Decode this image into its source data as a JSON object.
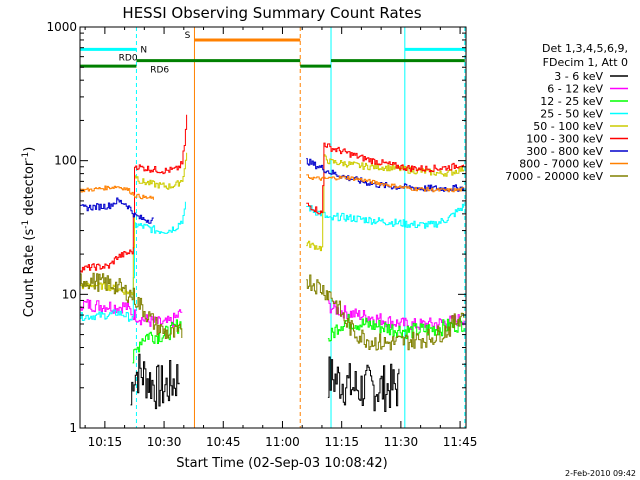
{
  "chart_data": {
    "type": "line",
    "title": "HESSI Observing Summary Count Rates",
    "xlabel": "Start Time (02-Sep-03 10:08:42)",
    "ylabel_main": "Count Rate (s",
    "ylabel_sup1": "-1",
    "ylabel_mid": " detector",
    "ylabel_sup2": "-1",
    "ylabel_end": ")",
    "yscale": "log",
    "ylim": [
      1,
      1000
    ],
    "xlim_min": [
      8.7,
      106.5
    ],
    "xticks": [
      {
        "min": 15,
        "label": "10:15"
      },
      {
        "min": 30,
        "label": "10:30"
      },
      {
        "min": 45,
        "label": "10:45"
      },
      {
        "min": 60,
        "label": "11:00"
      },
      {
        "min": 75,
        "label": "11:15"
      },
      {
        "min": 90,
        "label": "11:30"
      },
      {
        "min": 105,
        "label": "11:45"
      }
    ],
    "yticks": [
      {
        "value": 1,
        "label": "1"
      },
      {
        "value": 10,
        "label": "10"
      },
      {
        "value": 100,
        "label": "100"
      },
      {
        "value": 1000,
        "label": "1000"
      }
    ],
    "legend_header": [
      "Det 1,3,4,5,6,9,",
      "FDecim 1, Att 0"
    ],
    "legend_position": "right",
    "series": [
      {
        "name": "3 - 6 keV",
        "color": "#000000",
        "noise": 0.18,
        "segments": [
          [
            [
              21.5,
              1.5
            ],
            [
              22,
              2.6
            ],
            [
              24,
              2.6
            ],
            [
              26,
              2.3
            ],
            [
              28,
              2.0
            ],
            [
              30,
              2.0
            ],
            [
              32,
              2.2
            ],
            [
              34,
              2.5
            ]
          ],
          [
            [
              71.5,
              2.4
            ],
            [
              74,
              2.3
            ],
            [
              78,
              2.0
            ],
            [
              82,
              2.0
            ],
            [
              86,
              2.0
            ],
            [
              89.5,
              2.0
            ]
          ]
        ]
      },
      {
        "name": "6 - 12 keV",
        "color": "#ff00ff",
        "noise": 0.05,
        "segments": [
          [
            [
              8.7,
              8.5
            ],
            [
              12,
              8.3
            ],
            [
              16,
              8.2
            ],
            [
              18,
              8.0
            ],
            [
              20,
              8.2
            ],
            [
              22.5,
              7.0
            ],
            [
              24,
              6.6
            ],
            [
              27,
              6.2
            ],
            [
              30,
              6.0
            ],
            [
              32,
              6.3
            ],
            [
              34.5,
              7.5
            ]
          ],
          [
            [
              71.5,
              8.2
            ],
            [
              74,
              7.6
            ],
            [
              78,
              7.1
            ],
            [
              82,
              6.8
            ],
            [
              86,
              6.4
            ],
            [
              90,
              6.0
            ],
            [
              94,
              5.9
            ],
            [
              98,
              6.0
            ],
            [
              102,
              6.2
            ],
            [
              106,
              6.6
            ]
          ]
        ]
      },
      {
        "name": "12 - 25 keV",
        "color": "#00ff00",
        "noise": 0.06,
        "segments": [
          [
            [
              22,
              3.2
            ],
            [
              24,
              4.6
            ],
            [
              26,
              5.0
            ],
            [
              28,
              4.9
            ],
            [
              30,
              5.0
            ],
            [
              32,
              5.4
            ],
            [
              34.5,
              6.2
            ]
          ],
          [
            [
              71.5,
              4.5
            ],
            [
              74,
              5.8
            ],
            [
              76,
              6.3
            ],
            [
              80,
              6.0
            ],
            [
              84,
              5.8
            ],
            [
              88,
              5.5
            ],
            [
              92,
              5.3
            ],
            [
              96,
              5.4
            ],
            [
              100,
              5.6
            ],
            [
              106,
              6.1
            ]
          ]
        ]
      },
      {
        "name": "25 - 50 keV",
        "color": "#00ffff",
        "noise": 0.03,
        "segments": [
          [
            [
              8.7,
              6.8
            ],
            [
              12,
              6.9
            ],
            [
              16,
              7.0
            ],
            [
              18,
              7.3
            ],
            [
              20,
              7.0
            ],
            [
              22,
              6.5
            ],
            [
              22.5,
              33
            ],
            [
              25,
              32
            ],
            [
              28,
              30
            ],
            [
              31,
              30
            ],
            [
              33,
              32
            ],
            [
              34.5,
              36
            ],
            [
              35,
              40
            ],
            [
              35.5,
              48
            ]
          ],
          [
            [
              66,
              46
            ],
            [
              68,
              42
            ],
            [
              70,
              40
            ],
            [
              72,
              36
            ],
            [
              74,
              38
            ],
            [
              78,
              37
            ],
            [
              82,
              36
            ],
            [
              86,
              35
            ],
            [
              90,
              34
            ],
            [
              94,
              33
            ],
            [
              98,
              33
            ],
            [
              102,
              37
            ],
            [
              106,
              46
            ]
          ]
        ]
      },
      {
        "name": "50 - 100 keV",
        "color": "#cccc00",
        "noise": 0.025,
        "segments": [
          [
            [
              8.7,
              11.5
            ],
            [
              12,
              11.8
            ],
            [
              16,
              11.3
            ],
            [
              18,
              11.0
            ],
            [
              20,
              10.5
            ],
            [
              22,
              10.2
            ],
            [
              22.5,
              78
            ],
            [
              24,
              70
            ],
            [
              28,
              66
            ],
            [
              31,
              64
            ],
            [
              33,
              66
            ],
            [
              34.5,
              72
            ],
            [
              35.2,
              90
            ],
            [
              35.8,
              120
            ]
          ],
          [
            [
              66,
              24
            ],
            [
              68,
              23
            ],
            [
              70,
              22
            ],
            [
              70.5,
              105
            ],
            [
              72,
              98
            ],
            [
              76,
              95
            ],
            [
              80,
              91
            ],
            [
              84,
              90
            ],
            [
              88,
              88
            ],
            [
              92,
              85
            ],
            [
              96,
              83
            ],
            [
              100,
              80
            ],
            [
              103,
              82
            ],
            [
              106,
              88
            ]
          ]
        ]
      },
      {
        "name": "100 - 300 keV",
        "color": "#ff0000",
        "noise": 0.025,
        "segments": [
          [
            [
              8.7,
              15.5
            ],
            [
              12,
              16
            ],
            [
              16,
              16.2
            ],
            [
              18,
              19
            ],
            [
              20,
              20
            ],
            [
              22,
              21
            ],
            [
              22.5,
              92
            ],
            [
              24,
              89
            ],
            [
              27,
              86
            ],
            [
              30,
              84
            ],
            [
              33,
              86
            ],
            [
              34.5,
              95
            ],
            [
              35.2,
              140
            ],
            [
              35.8,
              240
            ]
          ],
          [
            [
              66,
              47
            ],
            [
              68,
              44
            ],
            [
              70,
              40
            ],
            [
              70.5,
              135
            ],
            [
              72,
              125
            ],
            [
              76,
              115
            ],
            [
              80,
              105
            ],
            [
              84,
              98
            ],
            [
              88,
              92
            ],
            [
              92,
              88
            ],
            [
              96,
              87
            ],
            [
              100,
              88
            ],
            [
              103,
              90
            ],
            [
              106,
              96
            ]
          ]
        ]
      },
      {
        "name": "300 - 800 keV",
        "color": "#0000cc",
        "noise": 0.025,
        "segments": [
          [
            [
              8.7,
              44
            ],
            [
              12,
              45
            ],
            [
              16,
              46
            ],
            [
              18,
              50
            ],
            [
              20,
              48
            ],
            [
              21,
              45
            ],
            [
              22.5,
              39
            ],
            [
              24,
              37
            ],
            [
              26,
              36
            ],
            [
              27.5,
              36
            ]
          ],
          [
            [
              66,
              100
            ],
            [
              68,
              93
            ],
            [
              70,
              88
            ],
            [
              72,
              82
            ],
            [
              76,
              75
            ],
            [
              80,
              70
            ],
            [
              84,
              66
            ],
            [
              88,
              64
            ],
            [
              92,
              63
            ],
            [
              96,
              62
            ],
            [
              100,
              62
            ],
            [
              103,
              62
            ],
            [
              106,
              63
            ]
          ]
        ]
      },
      {
        "name": "800 - 7000 keV",
        "color": "#ff8000",
        "noise": 0.015,
        "segments": [
          [
            [
              8.7,
              60
            ],
            [
              12,
              61
            ],
            [
              16,
              63
            ],
            [
              18,
              64
            ],
            [
              20,
              62
            ],
            [
              21,
              60
            ],
            [
              22.5,
              55
            ],
            [
              25,
              53
            ],
            [
              27.5,
              52
            ]
          ],
          [
            [
              66,
              76
            ],
            [
              68,
              74
            ],
            [
              70,
              73
            ],
            [
              72,
              74
            ],
            [
              76,
              75
            ],
            [
              80,
              72
            ],
            [
              84,
              68
            ],
            [
              88,
              65
            ],
            [
              92,
              62
            ],
            [
              96,
              61
            ],
            [
              100,
              60
            ],
            [
              103,
              60
            ],
            [
              106,
              61
            ]
          ]
        ]
      },
      {
        "name": "7000 - 20000 keV",
        "color": "#808000",
        "noise": 0.07,
        "segments": [
          [
            [
              8.7,
              13
            ],
            [
              12,
              12.5
            ],
            [
              16,
              12
            ],
            [
              18,
              11.5
            ],
            [
              20,
              10.5
            ],
            [
              22,
              9.8
            ],
            [
              24,
              8.2
            ],
            [
              26,
              6.8
            ],
            [
              28,
              5.8
            ],
            [
              30,
              5.2
            ],
            [
              32,
              5.0
            ],
            [
              34.5,
              5.2
            ]
          ],
          [
            [
              66,
              13
            ],
            [
              68,
              12
            ],
            [
              70,
              11
            ],
            [
              72,
              10
            ],
            [
              74,
              8
            ],
            [
              76,
              6.2
            ],
            [
              78,
              5.2
            ],
            [
              82,
              4.5
            ],
            [
              86,
              4.3
            ],
            [
              90,
              4.4
            ],
            [
              94,
              4.6
            ],
            [
              98,
              4.8
            ],
            [
              102,
              5.5
            ],
            [
              106,
              7.5
            ]
          ]
        ]
      }
    ],
    "vlines": [
      {
        "min": 8.7,
        "color": "#00ffff",
        "dashed": false
      },
      {
        "min": 23.0,
        "color": "#00ffff",
        "dashed": true
      },
      {
        "min": 37.7,
        "color": "#ff8000",
        "dashed": false
      },
      {
        "min": 64.5,
        "color": "#ff8000",
        "dashed": true
      },
      {
        "min": 72.3,
        "color": "#00ffff",
        "dashed": false
      },
      {
        "min": 91.0,
        "color": "#00ffff",
        "dashed": false
      },
      {
        "min": 106.2,
        "color": "#00ffff",
        "dashed": true
      }
    ],
    "flags": [
      {
        "label": "S",
        "color": "#ff8000",
        "value": 800,
        "segments": [
          [
            37.7,
            64.5
          ]
        ],
        "label_min": 35.2,
        "label_value": 870
      },
      {
        "label": "N",
        "color": "#00ffff",
        "value": 680,
        "segments": [
          [
            8.7,
            23.0
          ],
          [
            91.0,
            106.2
          ]
        ],
        "label_min": 24.0,
        "label_value": 680
      },
      {
        "label": "RD0",
        "color": "#008000",
        "value": 560,
        "segments": [
          [
            23.0,
            64.5
          ],
          [
            72.3,
            106.2
          ]
        ],
        "label_min": 18.5,
        "label_value": 590
      },
      {
        "label": "RD6",
        "color": "#008000",
        "value": 510,
        "segments": [
          [
            8.7,
            23.0
          ],
          [
            64.5,
            72.3
          ]
        ],
        "label_min": 26.5,
        "label_value": 480
      }
    ]
  },
  "footer_date": "2-Feb-2010 09:42"
}
